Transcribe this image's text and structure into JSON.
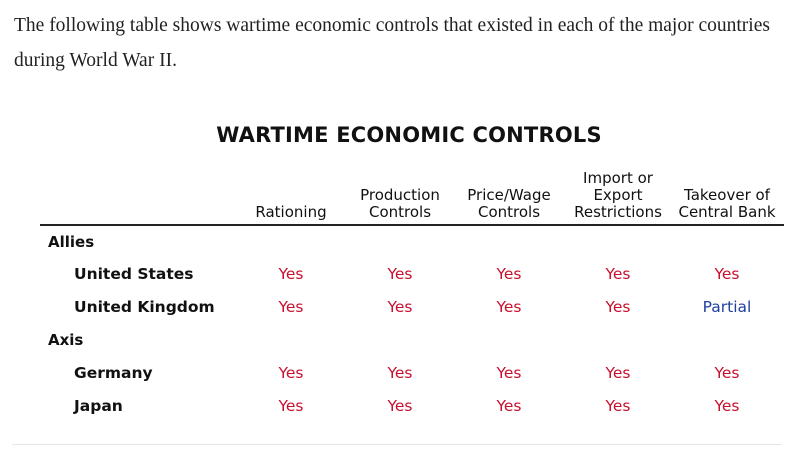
{
  "intro_text": "The following table shows wartime economic controls that existed in each of the major countries during World War II.",
  "table": {
    "title": "WARTIME ECONOMIC CONTROLS",
    "columns": [
      "Rationing",
      "Production\nControls",
      "Price/Wage\nControls",
      "Import or\nExport\nRestrictions",
      "Takeover of\nCentral Bank"
    ],
    "groups": [
      {
        "label": "Allies",
        "rows": [
          {
            "country": "United States",
            "values": [
              "Yes",
              "Yes",
              "Yes",
              "Yes",
              "Yes"
            ]
          },
          {
            "country": "United Kingdom",
            "values": [
              "Yes",
              "Yes",
              "Yes",
              "Yes",
              "Partial"
            ]
          }
        ]
      },
      {
        "label": "Axis",
        "rows": [
          {
            "country": "Germany",
            "values": [
              "Yes",
              "Yes",
              "Yes",
              "Yes",
              "Yes"
            ]
          },
          {
            "country": "Japan",
            "values": [
              "Yes",
              "Yes",
              "Yes",
              "Yes",
              "Yes"
            ]
          }
        ]
      }
    ]
  },
  "colors": {
    "yes": "#c8102e",
    "partial": "#1f3fa0"
  }
}
